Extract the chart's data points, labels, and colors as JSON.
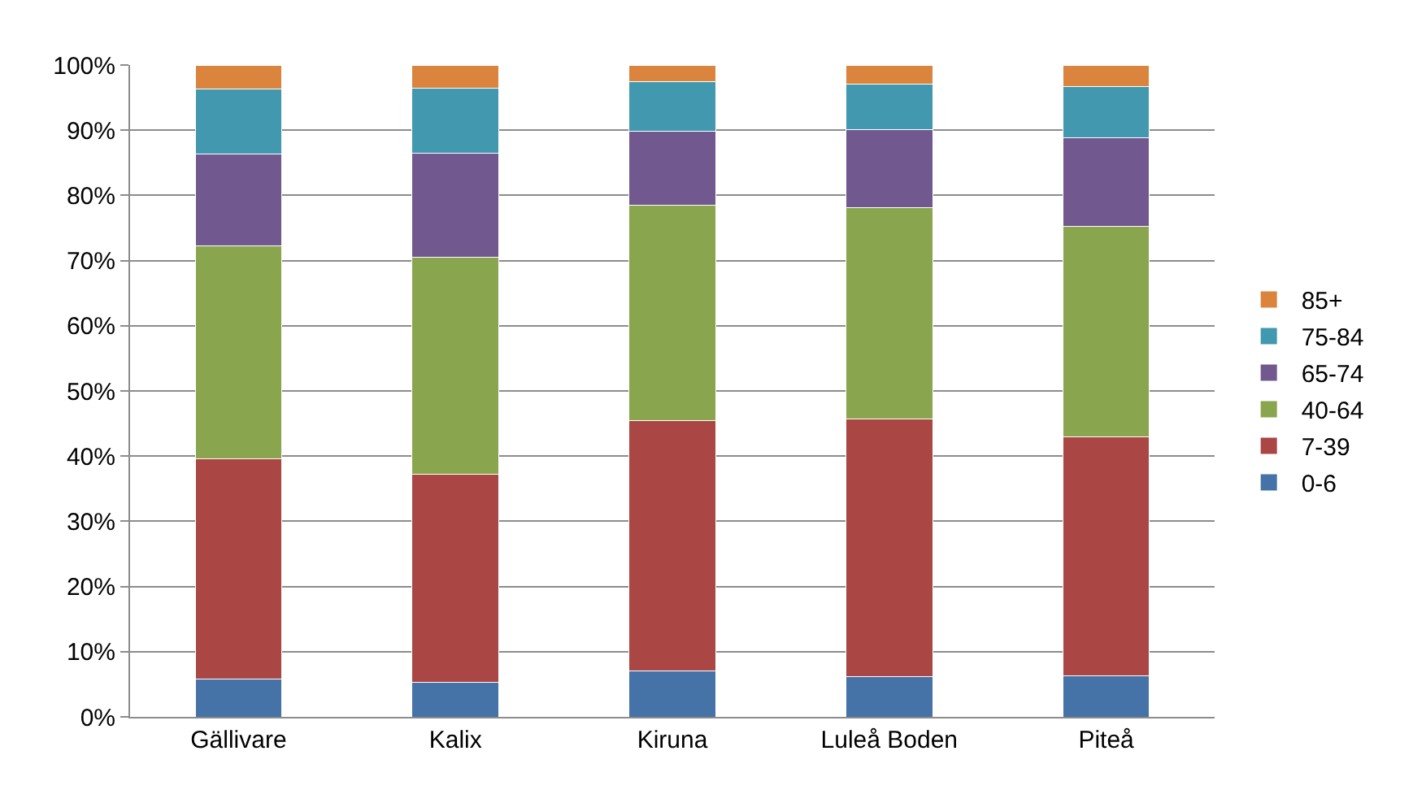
{
  "chart_data": {
    "type": "bar",
    "stacked": true,
    "categories": [
      "Gällivare",
      "Kalix",
      "Kiruna",
      "Luleå Boden",
      "Piteå"
    ],
    "series": [
      {
        "name": "0-6",
        "color": "#4572a7",
        "values": [
          5.8,
          5.3,
          7.0,
          6.2,
          6.3
        ]
      },
      {
        "name": "7-39",
        "color": "#aa4643",
        "values": [
          33.8,
          31.9,
          38.5,
          39.5,
          36.7
        ]
      },
      {
        "name": "40-64",
        "color": "#89a54e",
        "values": [
          32.7,
          33.3,
          33.0,
          32.4,
          32.2
        ]
      },
      {
        "name": "65-74",
        "color": "#71588f",
        "values": [
          14.0,
          16.0,
          11.4,
          12.0,
          13.6
        ]
      },
      {
        "name": "75-84",
        "color": "#4198af",
        "values": [
          10.0,
          9.9,
          7.5,
          7.0,
          7.9
        ]
      },
      {
        "name": "85+",
        "color": "#db843d",
        "values": [
          3.7,
          3.6,
          2.6,
          2.9,
          3.3
        ]
      }
    ],
    "ylim": [
      0,
      100
    ],
    "yticks": [
      {
        "value": 0,
        "label": "0%"
      },
      {
        "value": 10,
        "label": "10%"
      },
      {
        "value": 20,
        "label": "20%"
      },
      {
        "value": 30,
        "label": "30%"
      },
      {
        "value": 40,
        "label": "40%"
      },
      {
        "value": 50,
        "label": "50%"
      },
      {
        "value": 60,
        "label": "60%"
      },
      {
        "value": 70,
        "label": "70%"
      },
      {
        "value": 80,
        "label": "80%"
      },
      {
        "value": 90,
        "label": "90%"
      },
      {
        "value": 100,
        "label": "100%"
      }
    ],
    "grid": "y",
    "legend": "right"
  }
}
